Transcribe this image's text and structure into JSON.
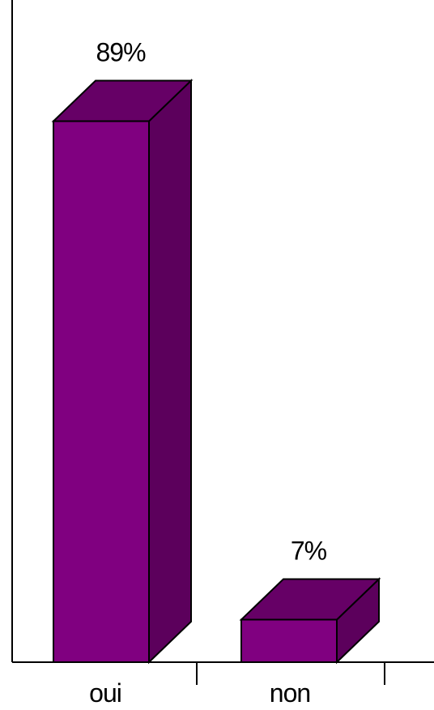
{
  "chart_data": {
    "type": "bar",
    "style": "3d",
    "categories": [
      "oui",
      "non"
    ],
    "values": [
      89,
      7
    ],
    "data_labels": [
      "89%",
      "7%"
    ],
    "ylim": [
      0,
      100
    ],
    "grid": false,
    "legend": "none",
    "colors": {
      "front": "#800080",
      "top": "#660066",
      "side": "#5c005c",
      "outline": "#000000"
    }
  }
}
